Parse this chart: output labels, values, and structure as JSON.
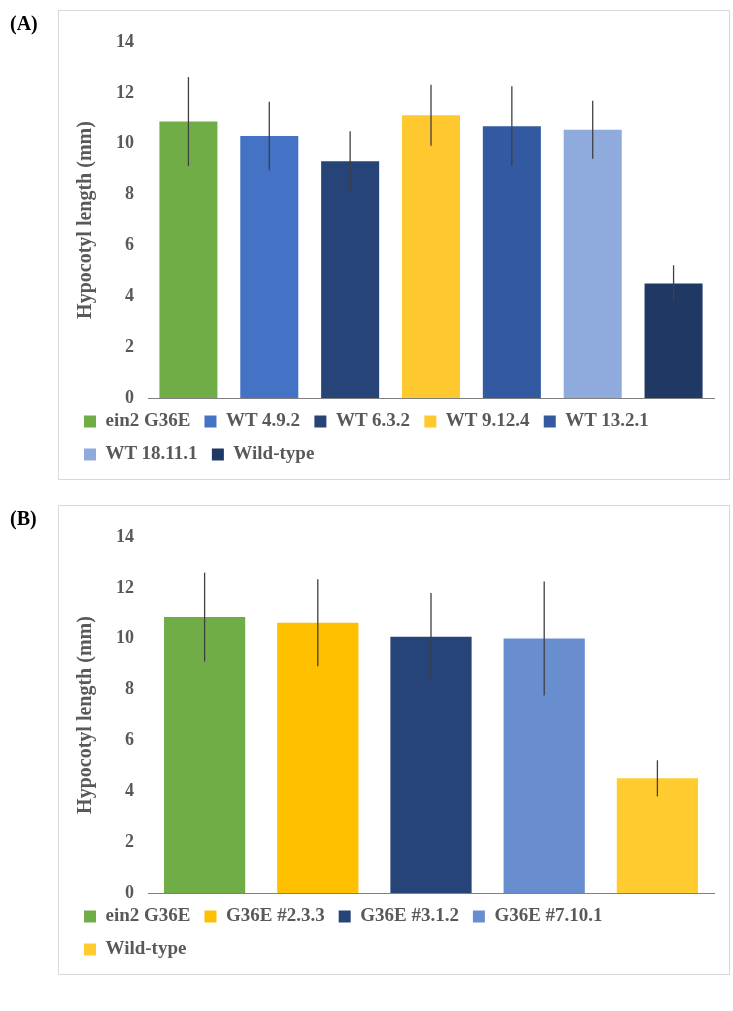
{
  "chart_data": [
    {
      "type": "bar",
      "title": "(A)",
      "ylabel": "Hypocotyl length (mm)",
      "categories": [
        null,
        null,
        null,
        null,
        null,
        null,
        null
      ],
      "ylim": [
        0,
        14
      ],
      "yticks": [
        0,
        2,
        4,
        6,
        8,
        10,
        12,
        14
      ],
      "grid": false,
      "legend": "bottom",
      "tick_labels": "y",
      "series": [
        {
          "name": "ein2 G36E",
          "color": "#70ad47",
          "values": [
            10.87,
            null,
            null,
            null,
            null,
            null,
            null
          ],
          "errors": [
            1.75,
            null,
            null,
            null,
            null,
            null,
            null
          ]
        },
        {
          "name": "WT 4.9.2",
          "color": "#4472c4",
          "values": [
            null,
            10.3,
            null,
            null,
            null,
            null,
            null
          ],
          "errors": [
            null,
            1.35,
            null,
            null,
            null,
            null,
            null
          ]
        },
        {
          "name": "WT 6.3.2",
          "color": "#264478",
          "values": [
            null,
            null,
            9.31,
            null,
            null,
            null,
            null
          ],
          "errors": [
            null,
            null,
            1.18,
            null,
            null,
            null,
            null
          ]
        },
        {
          "name": "WT 9.12.4",
          "color": "#ffc82e",
          "values": [
            null,
            null,
            null,
            11.12,
            null,
            null,
            null
          ],
          "errors": [
            null,
            null,
            null,
            1.2,
            null,
            null,
            null
          ]
        },
        {
          "name": "WT 13.2.1",
          "color": "#335aa1",
          "values": [
            null,
            null,
            null,
            null,
            10.69,
            null,
            null
          ],
          "errors": [
            null,
            null,
            null,
            null,
            1.57,
            null,
            null
          ]
        },
        {
          "name": "WT 18.11.1",
          "color": "#8faadc",
          "values": [
            null,
            null,
            null,
            null,
            null,
            10.55,
            null
          ],
          "errors": [
            null,
            null,
            null,
            null,
            null,
            1.14,
            null
          ]
        },
        {
          "name": "Wild-type",
          "color": "#203864",
          "values": [
            null,
            null,
            null,
            null,
            null,
            null,
            4.5
          ],
          "errors": [
            null,
            null,
            null,
            null,
            null,
            null,
            0.72
          ]
        }
      ]
    },
    {
      "type": "bar",
      "title": "(B)",
      "ylabel": "Hypocotyl length (mm)",
      "categories": [
        null,
        null,
        null,
        null,
        null
      ],
      "ylim": [
        0,
        14
      ],
      "yticks": [
        0,
        2,
        4,
        6,
        8,
        10,
        12,
        14
      ],
      "grid": false,
      "legend": "bottom",
      "tick_labels": "y",
      "series": [
        {
          "name": "ein2 G36E",
          "color": "#70ad47",
          "values": [
            10.85,
            null,
            null,
            null,
            null
          ],
          "errors": [
            1.75,
            null,
            null,
            null,
            null
          ]
        },
        {
          "name": "G36E #2.3.3",
          "color": "#ffc000",
          "values": [
            null,
            10.63,
            null,
            null,
            null
          ],
          "errors": [
            null,
            1.71,
            null,
            null,
            null
          ]
        },
        {
          "name": "G36E #3.1.2",
          "color": "#264478",
          "values": [
            null,
            null,
            10.08,
            null,
            null
          ],
          "errors": [
            null,
            null,
            1.72,
            null,
            null
          ]
        },
        {
          "name": "G36E #7.10.1",
          "color": "#698ed0",
          "values": [
            null,
            null,
            null,
            10.01,
            null
          ],
          "errors": [
            null,
            null,
            null,
            2.24,
            null
          ]
        },
        {
          "name": "Wild-type",
          "color": "#ffcb2e",
          "values": [
            null,
            null,
            null,
            null,
            4.51
          ],
          "errors": [
            null,
            null,
            null,
            null,
            0.71
          ]
        }
      ]
    }
  ]
}
